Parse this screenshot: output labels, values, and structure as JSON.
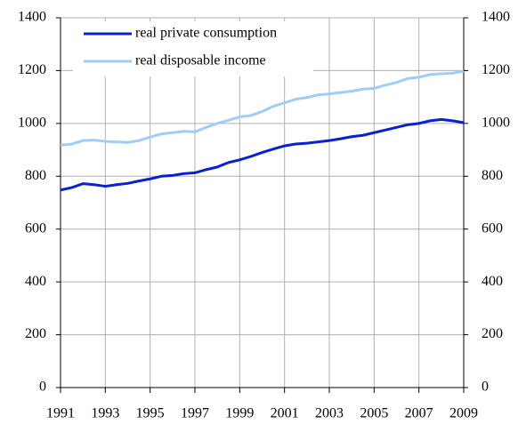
{
  "chart_data": {
    "type": "line",
    "x": [
      1991,
      1991.5,
      1992,
      1992.5,
      1993,
      1993.5,
      1994,
      1994.5,
      1995,
      1995.5,
      1996,
      1996.5,
      1997,
      1997.5,
      1998,
      1998.5,
      1999,
      1999.5,
      2000,
      2000.5,
      2001,
      2001.5,
      2002,
      2002.5,
      2003,
      2003.5,
      2004,
      2004.5,
      2005,
      2005.5,
      2006,
      2006.5,
      2007,
      2007.5,
      2008,
      2008.5,
      2009
    ],
    "series": [
      {
        "name": "real private consumption",
        "color": "#0a1fd0",
        "values": [
          748,
          757,
          772,
          768,
          762,
          768,
          773,
          782,
          790,
          800,
          803,
          810,
          813,
          825,
          835,
          852,
          862,
          875,
          890,
          903,
          915,
          922,
          925,
          930,
          935,
          942,
          950,
          955,
          965,
          975,
          985,
          995,
          1000,
          1010,
          1015,
          1010,
          1003
        ]
      },
      {
        "name": "real disposable income",
        "color": "#9fcdf5",
        "values": [
          918,
          922,
          935,
          937,
          932,
          930,
          928,
          935,
          948,
          960,
          965,
          970,
          968,
          985,
          1000,
          1012,
          1025,
          1030,
          1045,
          1065,
          1078,
          1092,
          1098,
          1108,
          1112,
          1117,
          1122,
          1130,
          1133,
          1145,
          1155,
          1170,
          1175,
          1185,
          1188,
          1190,
          1198
        ]
      }
    ],
    "xlim": [
      1991,
      2009
    ],
    "xticks": [
      1991,
      1993,
      1995,
      1997,
      1999,
      2001,
      2003,
      2005,
      2007,
      2009
    ],
    "ylim": [
      0,
      1400
    ],
    "yticks": [
      0,
      200,
      400,
      600,
      800,
      1000,
      1200,
      1400
    ],
    "y2lim": [
      0,
      1400
    ],
    "y2ticks": [
      0,
      200,
      400,
      600,
      800,
      1000,
      1200,
      1400
    ],
    "grid": true,
    "legend": "upper-left"
  }
}
